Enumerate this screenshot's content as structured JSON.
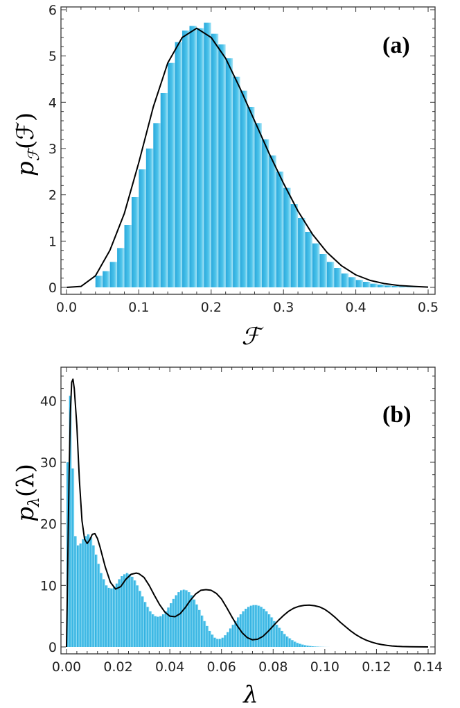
{
  "chart_data": [
    {
      "type": "bar",
      "panel_label": "(a)",
      "xlabel": "ℱ",
      "ylabel_main": "p",
      "ylabel_sub": "ℱ",
      "ylabel_arg": "(ℱ)",
      "xlim": [
        0.0,
        0.5
      ],
      "ylim": [
        0,
        6
      ],
      "x_ticks": [
        0.0,
        0.1,
        0.2,
        0.3,
        0.4,
        0.5
      ],
      "x_tick_labels": [
        "0.0",
        "0.1",
        "0.2",
        "0.3",
        "0.4",
        "0.5"
      ],
      "y_ticks": [
        0,
        1,
        2,
        3,
        4,
        5,
        6
      ],
      "y_tick_labels": [
        "0",
        "1",
        "2",
        "3",
        "4",
        "5",
        "6"
      ],
      "bin_width": 0.01,
      "bin_start": 0.0,
      "bar_color": "#4cc3ea",
      "values": [
        0,
        0,
        0,
        0,
        0.25,
        0.35,
        0.55,
        0.85,
        1.35,
        1.95,
        2.55,
        3.0,
        3.55,
        4.2,
        4.85,
        5.3,
        5.55,
        5.65,
        5.6,
        5.72,
        5.48,
        5.25,
        4.95,
        4.55,
        4.25,
        3.9,
        3.55,
        3.2,
        2.85,
        2.5,
        2.15,
        1.8,
        1.5,
        1.2,
        0.95,
        0.72,
        0.55,
        0.42,
        0.3,
        0.22,
        0.16,
        0.12,
        0.08,
        0.06,
        0.04,
        0.03,
        0.02,
        0.01,
        0.005,
        0
      ],
      "curve": {
        "x": [
          0.0,
          0.02,
          0.04,
          0.06,
          0.08,
          0.1,
          0.12,
          0.14,
          0.16,
          0.18,
          0.2,
          0.22,
          0.24,
          0.26,
          0.28,
          0.3,
          0.32,
          0.34,
          0.36,
          0.38,
          0.4,
          0.42,
          0.44,
          0.46,
          0.48,
          0.5
        ],
        "y": [
          0,
          0.02,
          0.25,
          0.8,
          1.6,
          2.7,
          3.9,
          4.85,
          5.4,
          5.6,
          5.4,
          4.95,
          4.3,
          3.6,
          2.9,
          2.25,
          1.65,
          1.15,
          0.76,
          0.47,
          0.27,
          0.15,
          0.08,
          0.04,
          0.02,
          0.005
        ]
      }
    },
    {
      "type": "bar",
      "panel_label": "(b)",
      "xlabel": "λ",
      "ylabel_main": "p",
      "ylabel_sub": "λ",
      "ylabel_arg": "(λ)",
      "xlim": [
        0.0,
        0.14
      ],
      "ylim": [
        0,
        45
      ],
      "x_ticks": [
        0.0,
        0.02,
        0.04,
        0.06,
        0.08,
        0.1,
        0.12,
        0.14
      ],
      "x_tick_labels": [
        "0.00",
        "0.02",
        "0.04",
        "0.06",
        "0.08",
        "0.10",
        "0.12",
        "0.14"
      ],
      "y_ticks": [
        0,
        10,
        20,
        30,
        40
      ],
      "y_tick_labels": [
        "0",
        "10",
        "20",
        "30",
        "40"
      ],
      "bin_width": 0.001,
      "bin_start": 0.0,
      "bar_color": "#4cc3ea",
      "values": [
        30,
        40.8,
        29,
        18,
        16.5,
        16.8,
        17.5,
        18,
        18.3,
        17.8,
        16.5,
        15,
        13.5,
        12,
        11,
        10,
        9.6,
        9.5,
        9.8,
        10.3,
        11,
        11.5,
        11.8,
        12,
        11.8,
        11.4,
        10.8,
        10,
        9.1,
        8.2,
        7.3,
        6.5,
        5.8,
        5.3,
        5,
        4.9,
        5,
        5.3,
        5.8,
        6.4,
        7.1,
        7.8,
        8.4,
        8.9,
        9.2,
        9.3,
        9.2,
        8.9,
        8.4,
        7.7,
        6.9,
        6,
        5.1,
        4.2,
        3.4,
        2.6,
        2,
        1.5,
        1.3,
        1.3,
        1.5,
        1.9,
        2.4,
        3,
        3.6,
        4.2,
        4.8,
        5.3,
        5.8,
        6.2,
        6.5,
        6.7,
        6.8,
        6.8,
        6.7,
        6.5,
        6.2,
        5.8,
        5.3,
        4.8,
        4.2,
        3.6,
        3.1,
        2.6,
        2.1,
        1.7,
        1.4,
        1.1,
        0.85,
        0.65,
        0.5,
        0.38,
        0.28,
        0.2,
        0.15,
        0.1,
        0.07,
        0.05,
        0.03,
        0.02,
        0.01,
        0.005
      ],
      "curve": {
        "x": [
          0.0,
          0.0005,
          0.001,
          0.0015,
          0.002,
          0.0025,
          0.003,
          0.004,
          0.005,
          0.006,
          0.007,
          0.008,
          0.009,
          0.01,
          0.011,
          0.012,
          0.013,
          0.015,
          0.017,
          0.019,
          0.021,
          0.023,
          0.025,
          0.027,
          0.028,
          0.03,
          0.032,
          0.034,
          0.036,
          0.038,
          0.04,
          0.042,
          0.044,
          0.046,
          0.048,
          0.05,
          0.052,
          0.054,
          0.056,
          0.058,
          0.06,
          0.062,
          0.064,
          0.066,
          0.068,
          0.07,
          0.072,
          0.074,
          0.076,
          0.078,
          0.08,
          0.082,
          0.084,
          0.086,
          0.088,
          0.09,
          0.092,
          0.094,
          0.096,
          0.098,
          0.1,
          0.102,
          0.104,
          0.106,
          0.108,
          0.11,
          0.112,
          0.114,
          0.116,
          0.118,
          0.12,
          0.122,
          0.124,
          0.126,
          0.128,
          0.13,
          0.133,
          0.136,
          0.14
        ],
        "y": [
          0,
          14,
          28,
          38,
          43,
          43.5,
          42,
          36,
          27,
          20.5,
          17.5,
          16.8,
          17.4,
          18.3,
          18.4,
          17.6,
          16.2,
          13,
          10.5,
          9.4,
          9.8,
          11,
          11.8,
          12,
          11.9,
          11.3,
          10,
          8.4,
          6.9,
          5.7,
          5,
          4.9,
          5.4,
          6.4,
          7.6,
          8.6,
          9.2,
          9.3,
          9.2,
          8.7,
          7.8,
          6.4,
          4.9,
          3.5,
          2.3,
          1.5,
          1.15,
          1.25,
          1.7,
          2.5,
          3.4,
          4.3,
          5.1,
          5.8,
          6.3,
          6.6,
          6.75,
          6.8,
          6.7,
          6.5,
          6.1,
          5.5,
          4.8,
          4,
          3.3,
          2.6,
          2,
          1.5,
          1.1,
          0.8,
          0.55,
          0.38,
          0.25,
          0.16,
          0.1,
          0.06,
          0.03,
          0.015,
          0
        ]
      }
    }
  ]
}
